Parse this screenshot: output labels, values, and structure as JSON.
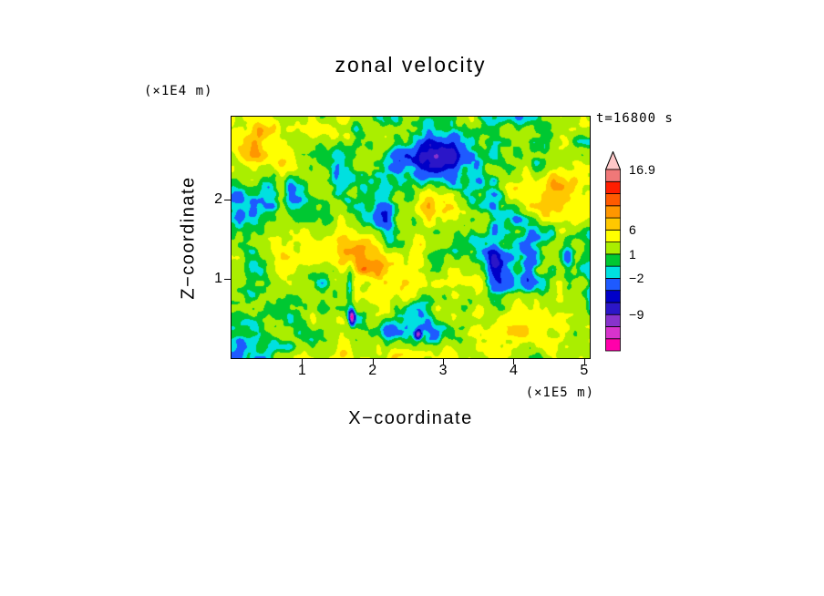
{
  "chart_data": {
    "type": "heatmap",
    "title": "zonal velocity",
    "time_annotation": "t=16800 s",
    "x_axis": {
      "title": "X−coordinate",
      "unit": "(×1E5 m)",
      "ticks": [
        1,
        2,
        3,
        4,
        5
      ],
      "range": [
        0,
        5.08
      ]
    },
    "y_axis": {
      "title": "Z−coordinate",
      "unit": "(×1E4 m)",
      "ticks": [
        1,
        2
      ],
      "range": [
        0,
        3.05
      ]
    },
    "colorbar": {
      "thresholds": [
        -14,
        -11.5,
        -9,
        -6.5,
        -4.5,
        -2,
        -0.5,
        1,
        3.5,
        6,
        8,
        10,
        12,
        14.5,
        16.9
      ],
      "band_colors": [
        "#FF00AA",
        "#D833CC",
        "#8833CC",
        "#2B16C8",
        "#0000C8",
        "#1E5AFF",
        "#00E0E0",
        "#00C832",
        "#AAEE00",
        "#FFFF00",
        "#FFC800",
        "#FF9600",
        "#FF5A00",
        "#FF1E00",
        "#F07878"
      ],
      "over_color": "#FFC8C8",
      "tick_labels": [
        {
          "text": "16.9",
          "value": 16.9
        },
        {
          "text": "6",
          "value": 6
        },
        {
          "text": "1",
          "value": 1
        },
        {
          "text": "−2",
          "value": -2
        },
        {
          "text": "−9",
          "value": -9
        }
      ]
    },
    "field": {
      "seed": 7,
      "base": 1.8,
      "octaves": [
        {
          "sx": 56,
          "sy": 46,
          "amp": 3.2,
          "shear": 0.3
        },
        {
          "sx": 30,
          "sy": 26,
          "amp": 2.6,
          "shear": 0.3
        },
        {
          "sx": 16,
          "sy": 14,
          "amp": 2.0,
          "shear": 0.15
        },
        {
          "sx": 8,
          "sy": 7,
          "amp": 1.2,
          "shear": 0
        },
        {
          "sx": 9,
          "sy": 50,
          "amp": 1.1,
          "shear": 0
        }
      ],
      "features": [
        {
          "x": 0.55,
          "y": 0.17,
          "sx": 0.07,
          "sy": 0.1,
          "amp": -8
        },
        {
          "x": 0.63,
          "y": 0.12,
          "sx": 0.05,
          "sy": 0.08,
          "amp": -6
        },
        {
          "x": 0.42,
          "y": 0.4,
          "sx": 0.05,
          "sy": 0.07,
          "amp": -5
        },
        {
          "x": 0.73,
          "y": 0.6,
          "sx": 0.025,
          "sy": 0.14,
          "amp": -6
        },
        {
          "x": 0.83,
          "y": 0.62,
          "sx": 0.02,
          "sy": 0.1,
          "amp": -5
        },
        {
          "x": 0.33,
          "y": 0.7,
          "sx": 0.012,
          "sy": 0.12,
          "amp": -5
        },
        {
          "x": 0.4,
          "y": 0.56,
          "sx": 0.13,
          "sy": 0.11,
          "amp": 4
        },
        {
          "x": 0.08,
          "y": 0.14,
          "sx": 0.06,
          "sy": 0.09,
          "amp": 4
        },
        {
          "x": 0.28,
          "y": 0.08,
          "sx": 0.08,
          "sy": 0.05,
          "amp": 3
        },
        {
          "x": 0.9,
          "y": 0.34,
          "sx": 0.05,
          "sy": 0.1,
          "amp": 3.5
        },
        {
          "x": 0.62,
          "y": 0.82,
          "sx": 0.07,
          "sy": 0.07,
          "amp": 3
        },
        {
          "x": 0.97,
          "y": 0.1,
          "sx": 0.04,
          "sy": 0.06,
          "amp": -5
        },
        {
          "x": 0.335,
          "y": 0.83,
          "sx": 0.008,
          "sy": 0.03,
          "amp": -14
        },
        {
          "x": 0.52,
          "y": 0.9,
          "sx": 0.01,
          "sy": 0.02,
          "amp": -13
        }
      ]
    }
  }
}
